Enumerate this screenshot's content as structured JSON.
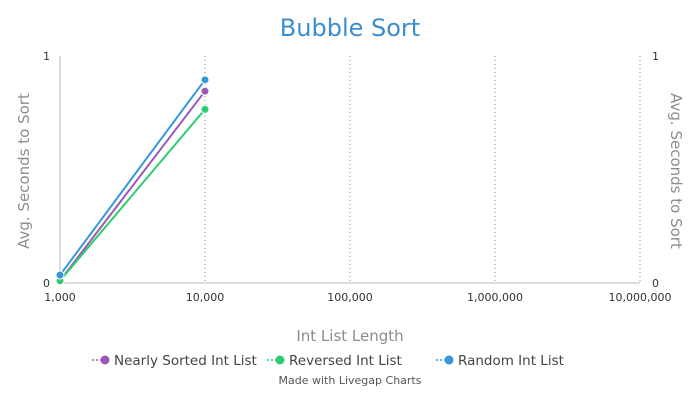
{
  "chart_data": {
    "type": "line",
    "title": "Bubble Sort",
    "xlabel": "Int List Length",
    "ylabel": "Avg. Seconds to Sort",
    "y2label": "Avg. Seconds to Sort",
    "x_scale": "log",
    "xlim": [
      1000,
      10000000
    ],
    "ylim": [
      0,
      1
    ],
    "x_ticks": [
      {
        "value": 1000,
        "label": "1,000"
      },
      {
        "value": 10000,
        "label": "10,000"
      },
      {
        "value": 100000,
        "label": "100,000"
      },
      {
        "value": 1000000,
        "label": "1,000,000"
      },
      {
        "value": 10000000,
        "label": "10,000,000"
      }
    ],
    "y_ticks": [
      {
        "value": 0,
        "label": "0"
      },
      {
        "value": 1,
        "label": "1"
      }
    ],
    "grid": "vertical dotted",
    "legend_position": "bottom",
    "series": [
      {
        "name": "Nearly Sorted Int List",
        "color": "#9b59b6",
        "x": [
          1000,
          10000
        ],
        "y": [
          0.01,
          0.845
        ]
      },
      {
        "name": "Reversed Int List",
        "color": "#2ecc71",
        "x": [
          1000,
          10000
        ],
        "y": [
          0.01,
          0.765
        ]
      },
      {
        "name": "Random Int List",
        "color": "#3498db",
        "x": [
          1000,
          10000
        ],
        "y": [
          0.035,
          0.895
        ]
      }
    ]
  },
  "footer": {
    "credit": "Made with Livegap Charts"
  }
}
